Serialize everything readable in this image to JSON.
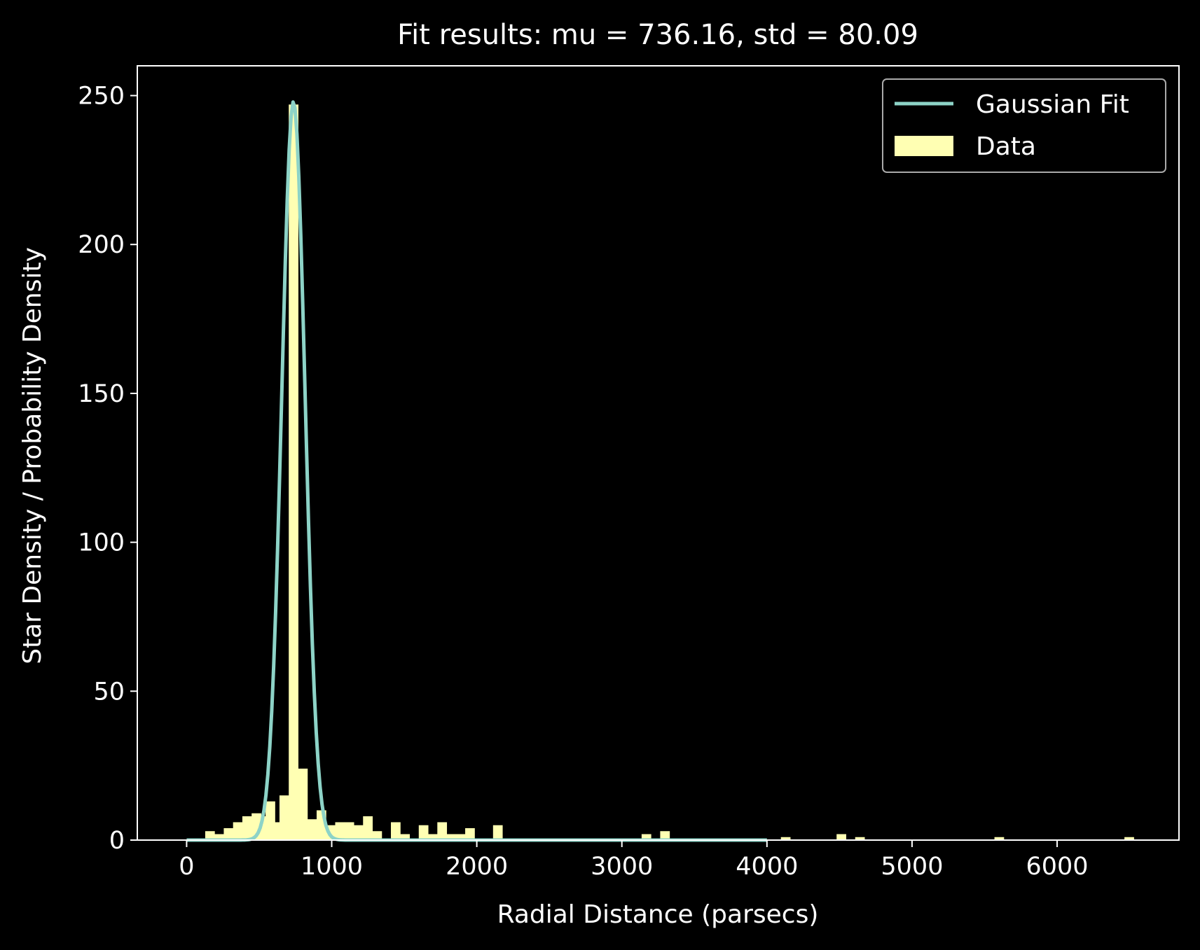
{
  "chart_data": {
    "type": "histogram",
    "title": "Fit results: mu = 736.16,  std = 80.09",
    "xlabel": "Radial Distance (parsecs)",
    "ylabel": "Star Density / Probability Density",
    "xlim": [
      -340,
      6840
    ],
    "ylim": [
      0,
      260
    ],
    "xticks": [
      0,
      1000,
      2000,
      3000,
      4000,
      5000,
      6000
    ],
    "xtick_labels": [
      "0",
      "1000",
      "2000",
      "3000",
      "4000",
      "5000",
      "6000"
    ],
    "yticks": [
      0,
      50,
      100,
      150,
      200,
      250
    ],
    "ytick_labels": [
      "0",
      "50",
      "100",
      "150",
      "200",
      "250"
    ],
    "grid": false,
    "legend": {
      "position": "top-right",
      "entries": [
        {
          "label": "Gaussian Fit",
          "kind": "line",
          "color": "#8dd3c7"
        },
        {
          "label": "Data",
          "kind": "patch",
          "color": "#ffffb3"
        }
      ]
    },
    "colors": {
      "background": "#000000",
      "axes": "#ffffff",
      "text": "#ffffff",
      "bars": "#ffffb3",
      "fit_line": "#8dd3c7"
    },
    "bin_width": 64,
    "bins": [
      {
        "x0": 128,
        "value": 3
      },
      {
        "x0": 192,
        "value": 2
      },
      {
        "x0": 256,
        "value": 4
      },
      {
        "x0": 320,
        "value": 6
      },
      {
        "x0": 384,
        "value": 8
      },
      {
        "x0": 448,
        "value": 9
      },
      {
        "x0": 512,
        "value": 8
      },
      {
        "x0": 544,
        "value": 13
      },
      {
        "x0": 576,
        "value": 6
      },
      {
        "x0": 640,
        "value": 15
      },
      {
        "x0": 704,
        "value": 247
      },
      {
        "x0": 768,
        "value": 24
      },
      {
        "x0": 832,
        "value": 7
      },
      {
        "x0": 896,
        "value": 10
      },
      {
        "x0": 960,
        "value": 5
      },
      {
        "x0": 1024,
        "value": 6
      },
      {
        "x0": 1088,
        "value": 6
      },
      {
        "x0": 1152,
        "value": 5
      },
      {
        "x0": 1216,
        "value": 8
      },
      {
        "x0": 1280,
        "value": 3
      },
      {
        "x0": 1408,
        "value": 6
      },
      {
        "x0": 1472,
        "value": 2
      },
      {
        "x0": 1600,
        "value": 5
      },
      {
        "x0": 1664,
        "value": 2
      },
      {
        "x0": 1728,
        "value": 6
      },
      {
        "x0": 1792,
        "value": 2
      },
      {
        "x0": 1856,
        "value": 2
      },
      {
        "x0": 1920,
        "value": 4
      },
      {
        "x0": 2112,
        "value": 5
      },
      {
        "x0": 3136,
        "value": 2
      },
      {
        "x0": 3264,
        "value": 3
      },
      {
        "x0": 4096,
        "value": 1
      },
      {
        "x0": 4480,
        "value": 2
      },
      {
        "x0": 4608,
        "value": 1
      },
      {
        "x0": 5568,
        "value": 1
      },
      {
        "x0": 6464,
        "value": 1
      }
    ],
    "fit": {
      "name": "Gaussian Fit",
      "mu": 736.16,
      "std": 80.09,
      "peak": 248,
      "x_range": [
        0,
        4000
      ]
    }
  }
}
